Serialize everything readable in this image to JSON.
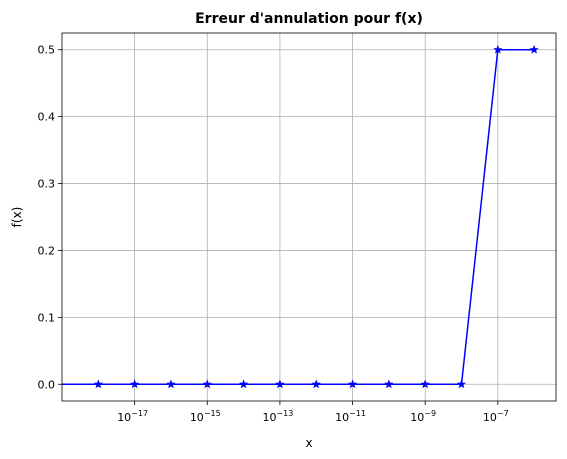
{
  "chart_data": {
    "type": "line",
    "title": "Erreur d'annulation pour f(x)",
    "xlabel": "x",
    "ylabel": "f(x)",
    "x_scale": "log",
    "xlim": [
      1e-19,
      4e-06
    ],
    "ylim": [
      -0.025,
      0.525
    ],
    "x_ticks": [
      1e-17,
      1e-15,
      1e-13,
      1e-11,
      1e-09,
      1e-07
    ],
    "x_tick_labels": [
      {
        "base": "10",
        "exp": "−17"
      },
      {
        "base": "10",
        "exp": "−15"
      },
      {
        "base": "10",
        "exp": "−13"
      },
      {
        "base": "10",
        "exp": "−11"
      },
      {
        "base": "10",
        "exp": "−9"
      },
      {
        "base": "10",
        "exp": "−7"
      }
    ],
    "y_ticks": [
      "0.0",
      "0.1",
      "0.2",
      "0.3",
      "0.4",
      "0.5"
    ],
    "grid": true,
    "line_color": "#0000ff",
    "marker": "star",
    "series": [
      {
        "x": [
          1e-18,
          1e-17,
          1e-16,
          1e-15,
          1e-14,
          1e-13,
          1e-12,
          1e-11,
          1e-10,
          1e-09,
          1e-08,
          1e-07,
          1e-06
        ],
        "values": [
          0,
          0,
          0,
          0,
          0,
          0,
          0,
          0,
          0,
          0,
          0,
          0.4999999,
          0.5000001
        ]
      }
    ]
  }
}
